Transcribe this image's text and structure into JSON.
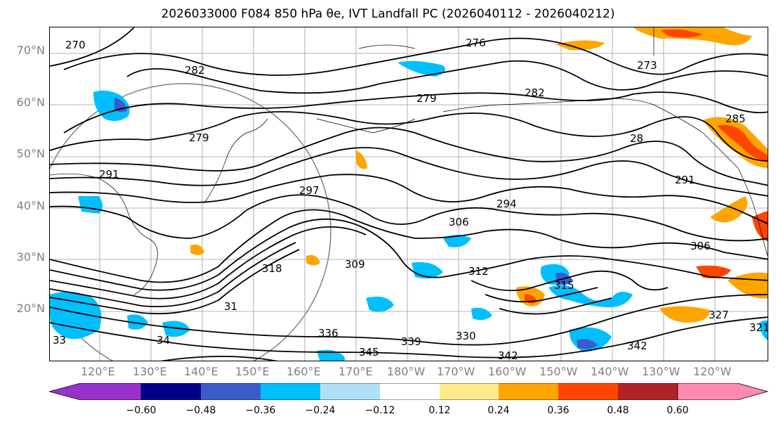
{
  "title": "2026033000 F084 850 hPa θe, IVT Landfall PC (2026040112 - 2026040212)",
  "lat_labels": [
    "70°N",
    "60°N",
    "50°N",
    "40°N",
    "30°N",
    "20°N"
  ],
  "lon_labels": [
    "120°E",
    "130°E",
    "140°E",
    "150°E",
    "160°E",
    "170°E",
    "180°W",
    "170°W",
    "160°W",
    "150°W",
    "140°W",
    "130°W",
    "120°W"
  ],
  "contour_labels": [
    "270",
    "282",
    "276",
    "273",
    "279",
    "282",
    "279",
    "285",
    "291",
    "28",
    "297",
    "291",
    "294",
    "306",
    "306",
    "309",
    "312",
    "315",
    "318",
    "330",
    "336",
    "339",
    "345",
    "342",
    "342",
    "327",
    "321",
    "33",
    "31",
    "34"
  ],
  "colorbar": {
    "ticks": [
      "−0.60",
      "−0.48",
      "−0.36",
      "−0.24",
      "−0.12",
      "0.12",
      "0.24",
      "0.36",
      "0.48",
      "0.60"
    ],
    "colors": [
      "#9932cc",
      "#00008b",
      "#3b5bcc",
      "#00bfff",
      "#b0e0f8",
      "#ffffff",
      "#ffeb8a",
      "#ffa500",
      "#ff4500",
      "#b22222",
      "#ff8ab0"
    ]
  }
}
